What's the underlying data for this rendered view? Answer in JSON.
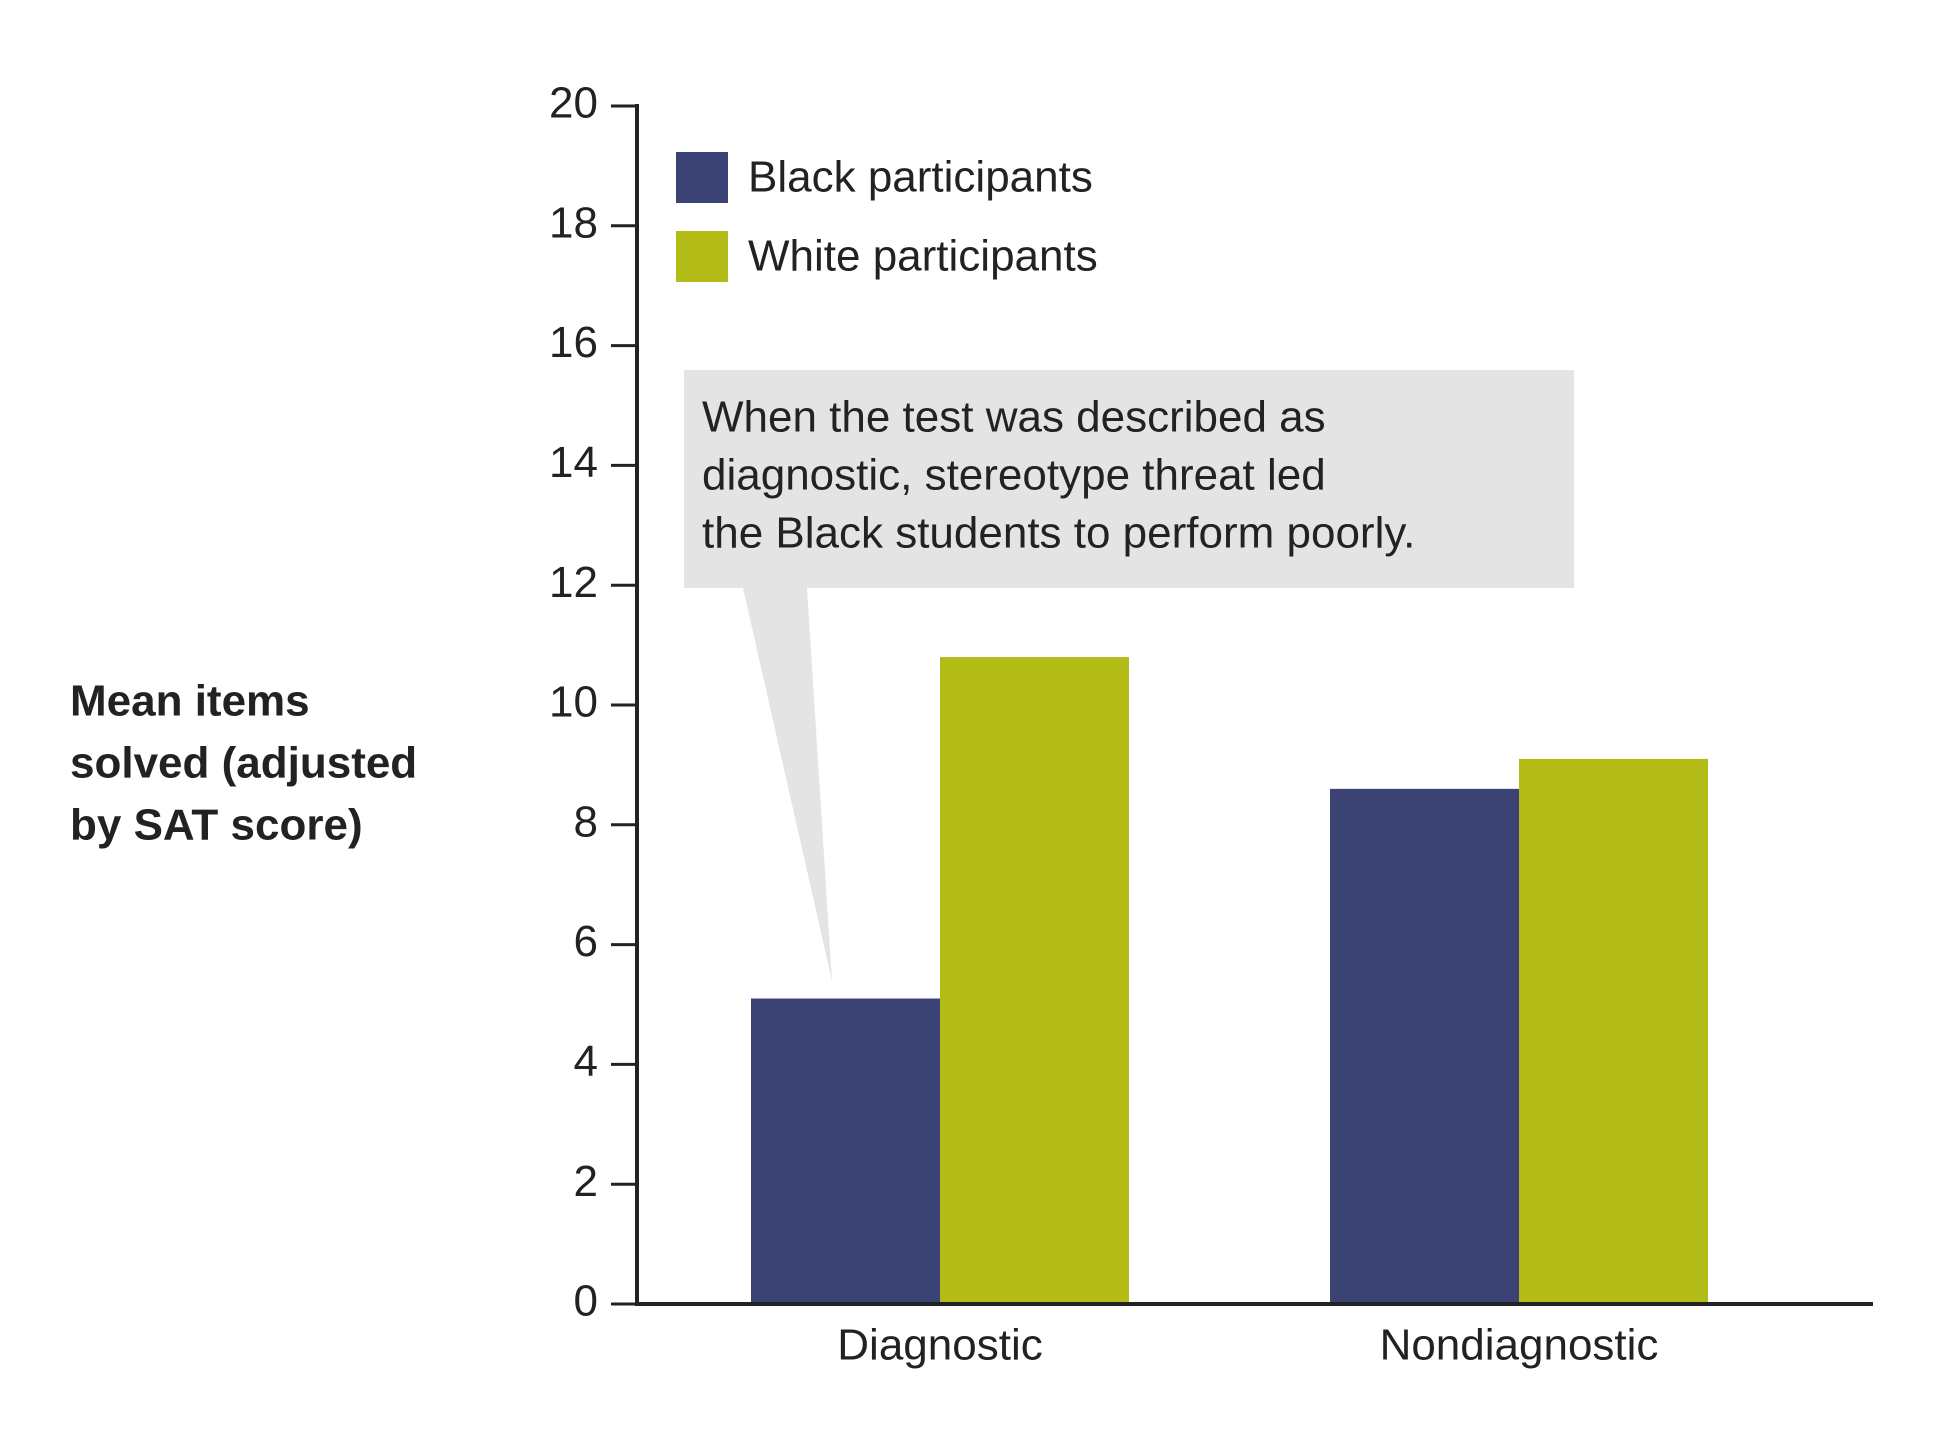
{
  "chart_data": {
    "type": "bar",
    "ylabel": [
      "Mean items",
      "solved (adjusted",
      "by SAT score)"
    ],
    "categories": [
      "Diagnostic",
      "Nondiagnostic"
    ],
    "series": [
      {
        "name": "Black participants",
        "color": "#3b4374",
        "values": [
          5.1,
          8.6
        ]
      },
      {
        "name": "White participants",
        "color": "#b3bb17",
        "values": [
          10.8,
          9.1
        ]
      }
    ],
    "ylim": [
      0,
      20
    ],
    "yticks": [
      0,
      2,
      4,
      6,
      8,
      10,
      12,
      14,
      16,
      18,
      20
    ],
    "legend": "upper left",
    "annotation": [
      "When the test was described as",
      "diagnostic, stereotype threat led",
      "the Black students to perform poorly."
    ]
  }
}
